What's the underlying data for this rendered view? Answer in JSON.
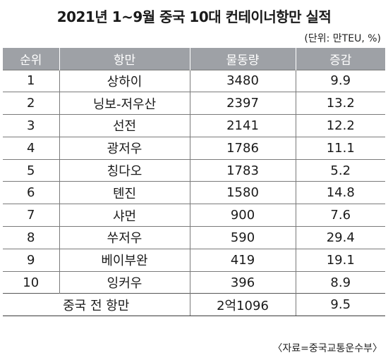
{
  "title": "2021년 1~9월 중국 10대 컨테이너항만 실적",
  "unit_note": "(단위: 만TEU, %)",
  "table": {
    "headers": [
      "순위",
      "항만",
      "물동량",
      "증감"
    ],
    "rows": [
      {
        "rank": "1",
        "port": "상하이",
        "volume": "3480",
        "change": "9.9"
      },
      {
        "rank": "2",
        "port": "닝보-저우산",
        "volume": "2397",
        "change": "13.2"
      },
      {
        "rank": "3",
        "port": "선전",
        "volume": "2141",
        "change": "12.2"
      },
      {
        "rank": "4",
        "port": "광저우",
        "volume": "1786",
        "change": "11.1"
      },
      {
        "rank": "5",
        "port": "칭다오",
        "volume": "1783",
        "change": "5.2"
      },
      {
        "rank": "6",
        "port": "톈진",
        "volume": "1580",
        "change": "14.8"
      },
      {
        "rank": "7",
        "port": "샤먼",
        "volume": "900",
        "change": "7.6"
      },
      {
        "rank": "8",
        "port": "쑤저우",
        "volume": "590",
        "change": "29.4"
      },
      {
        "rank": "9",
        "port": "베이부완",
        "volume": "419",
        "change": "19.1"
      },
      {
        "rank": "10",
        "port": "잉커우",
        "volume": "396",
        "change": "8.9"
      }
    ],
    "total": {
      "label": "중국 전 항만",
      "volume": "2억1096",
      "change": "9.5"
    }
  },
  "source": "〈자료=중국교통운수부〉"
}
